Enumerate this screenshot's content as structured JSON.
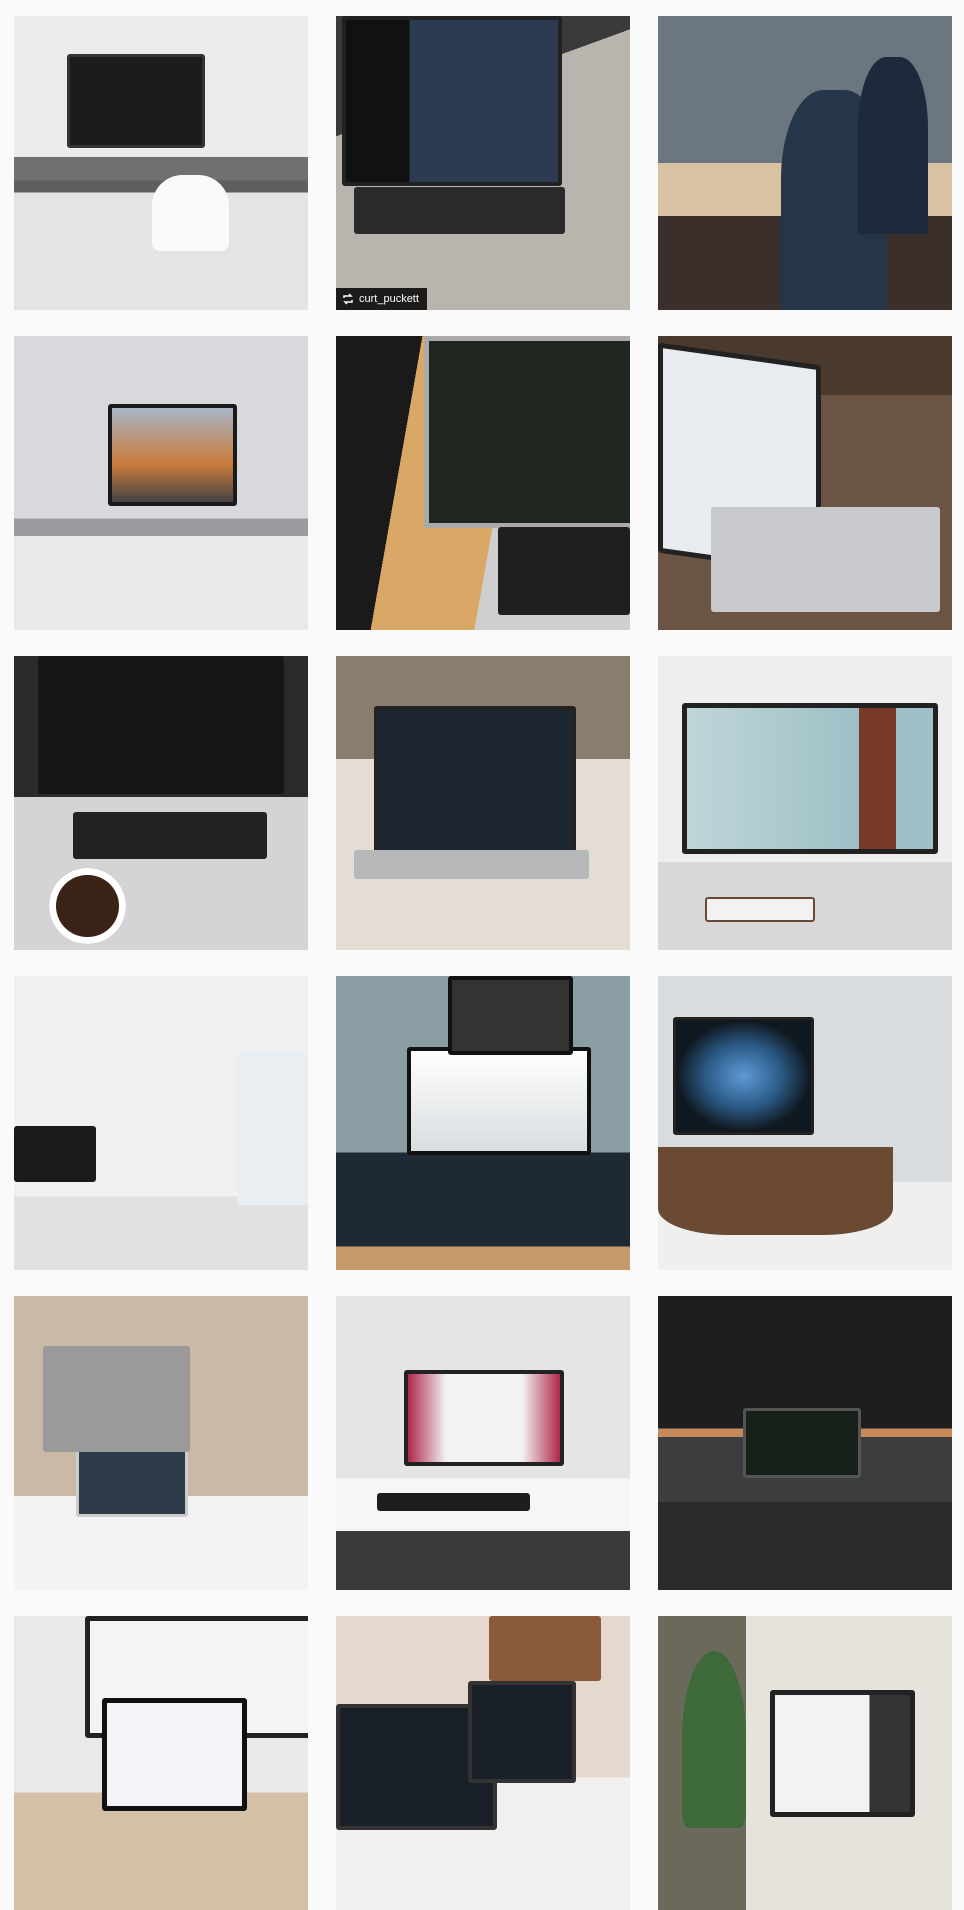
{
  "repost": {
    "username": "curt_puckett"
  }
}
